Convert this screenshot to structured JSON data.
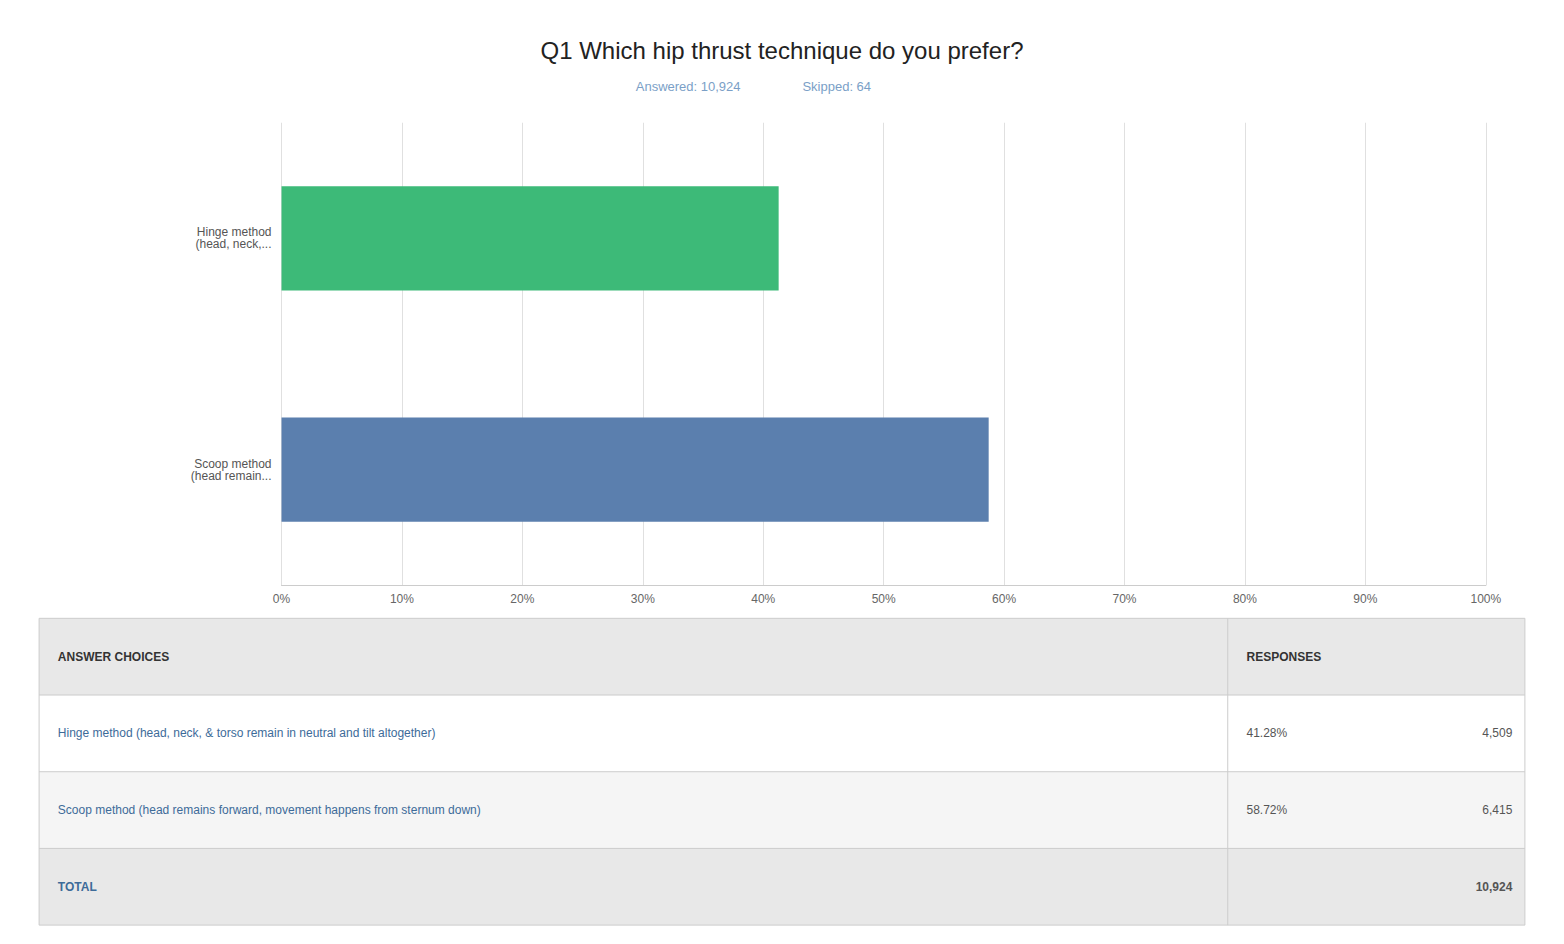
{
  "chart_data": {
    "type": "bar",
    "orientation": "horizontal",
    "title": "Q1 Which hip thrust technique do you prefer?",
    "subtitle": [
      "Answered: 10,924",
      "Skipped: 64"
    ],
    "categories": [
      "Hinge method\n(head, neck,...",
      "Scoop method\n(head remain..."
    ],
    "values": [
      41.28,
      58.72
    ],
    "colors": [
      "#3dba78",
      "#5b7fae"
    ],
    "xlim": [
      0,
      100
    ],
    "xticks": [
      {
        "value": 0,
        "label": "0%"
      },
      {
        "value": 10,
        "label": "10%"
      },
      {
        "value": 20,
        "label": "20%"
      },
      {
        "value": 30,
        "label": "30%"
      },
      {
        "value": 40,
        "label": "40%"
      },
      {
        "value": 50,
        "label": "50%"
      },
      {
        "value": 60,
        "label": "60%"
      },
      {
        "value": 70,
        "label": "70%"
      },
      {
        "value": 80,
        "label": "80%"
      },
      {
        "value": 90,
        "label": "90%"
      },
      {
        "value": 100,
        "label": "100%"
      }
    ],
    "grid": true,
    "table": {
      "headers": [
        "ANSWER CHOICES",
        "RESPONSES"
      ],
      "rows": [
        [
          "Hinge method (head, neck, & torso remain in neutral and tilt altogether)",
          "41.28%",
          "4,509"
        ],
        [
          "Scoop method (head remains forward, movement happens from sternum down)",
          "58.72%",
          "6,415"
        ]
      ],
      "total": [
        "TOTAL",
        null,
        "10,924"
      ]
    }
  }
}
